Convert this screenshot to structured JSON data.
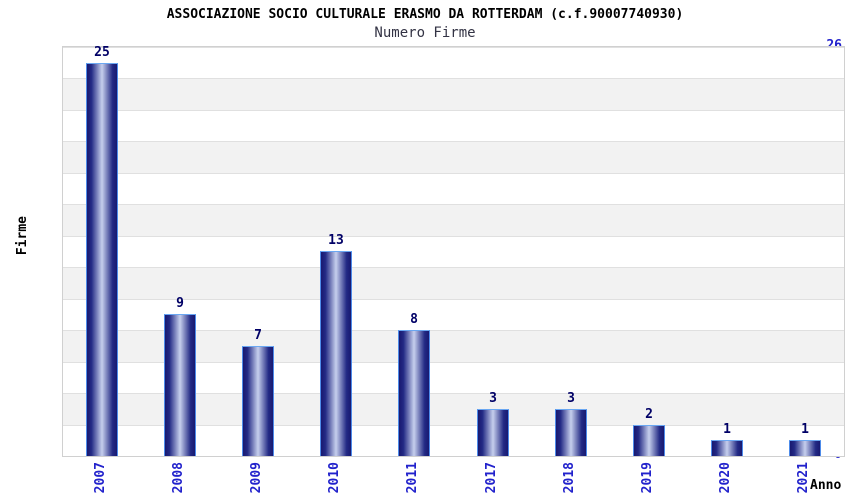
{
  "header": {
    "title": "ASSOCIAZIONE SOCIO CULTURALE ERASMO DA ROTTERDAM (c.f.90007740930)",
    "subtitle": "Numero Firme"
  },
  "chart_data": {
    "type": "bar",
    "title": "ASSOCIAZIONE SOCIO CULTURALE ERASMO DA ROTTERDAM (c.f.90007740930)",
    "subtitle": "Numero Firme",
    "categories": [
      "2007",
      "2008",
      "2009",
      "2010",
      "2011",
      "2017",
      "2018",
      "2019",
      "2020",
      "2021"
    ],
    "values": [
      25,
      9,
      7,
      13,
      8,
      3,
      3,
      2,
      1,
      1
    ],
    "xlabel": "Anno",
    "ylabel": "Firme",
    "ylim": [
      0,
      26
    ],
    "ytick_step": 2,
    "grid": "horizontal-bands-alternating",
    "legend": "none",
    "bar_value_labels": [
      25,
      9,
      7,
      13,
      8,
      3,
      3,
      2,
      1,
      1
    ],
    "colors": {
      "bar_dark": "#191970",
      "bar_mid": "#232a85",
      "bar_light": "#c6cfed",
      "bar_border": "#4d8bea",
      "tick_label": "#2222cc",
      "value_label": "#000066",
      "band_gray": "#f2f2f2",
      "grid_line": "#e0e0e0",
      "plot_border": "#d0d0d0",
      "title_color": "#000000",
      "subtitle_color": "#333344",
      "axis_title_color": "#000000"
    }
  }
}
